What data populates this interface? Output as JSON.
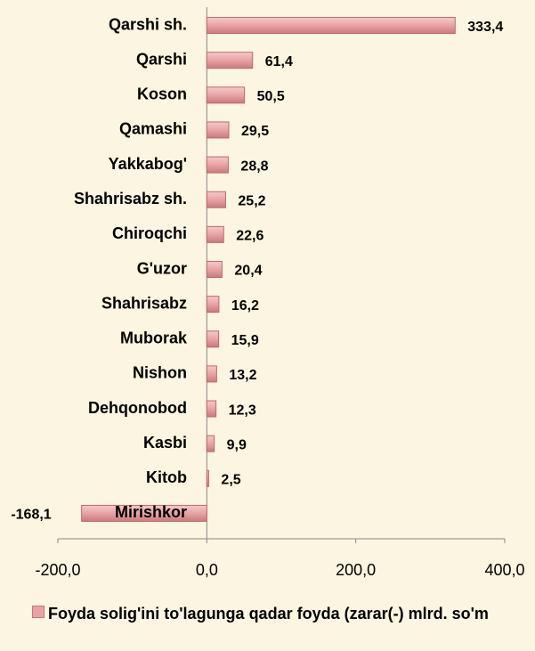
{
  "chart_data": {
    "type": "barh",
    "categories": [
      "Qarshi sh.",
      "Qarshi",
      "Koson",
      "Qamashi",
      "Yakkabog'",
      "Shahrisabz sh.",
      "Chiroqchi",
      "G'uzor",
      "Shahrisabz",
      "Muborak",
      "Nishon",
      "Dehqonobod",
      "Kasbi",
      "Kitob",
      "Mirishkor"
    ],
    "series": [
      {
        "name": "Foyda solig'ini to'lagunga qadar foyda (zarar(-) mlrd. so'm",
        "color": "#e9a3a5",
        "values": [
          333.4,
          61.4,
          50.5,
          29.5,
          28.8,
          25.2,
          22.6,
          20.4,
          16.2,
          15.9,
          13.2,
          12.3,
          9.9,
          2.5,
          -168.1
        ],
        "value_labels": [
          "333,4",
          "61,4",
          "50,5",
          "29,5",
          "28,8",
          "25,2",
          "22,6",
          "20,4",
          "16,2",
          "15,9",
          "13,2",
          "12,3",
          "9,9",
          "2,5",
          "-168,1"
        ]
      }
    ],
    "xlim": [
      -200,
      400
    ],
    "xticks": [
      {
        "value": -200,
        "label": "-200,0"
      },
      {
        "value": 0,
        "label": "0,0"
      },
      {
        "value": 200,
        "label": "200,0"
      },
      {
        "value": 400,
        "label": "400,0"
      }
    ]
  }
}
